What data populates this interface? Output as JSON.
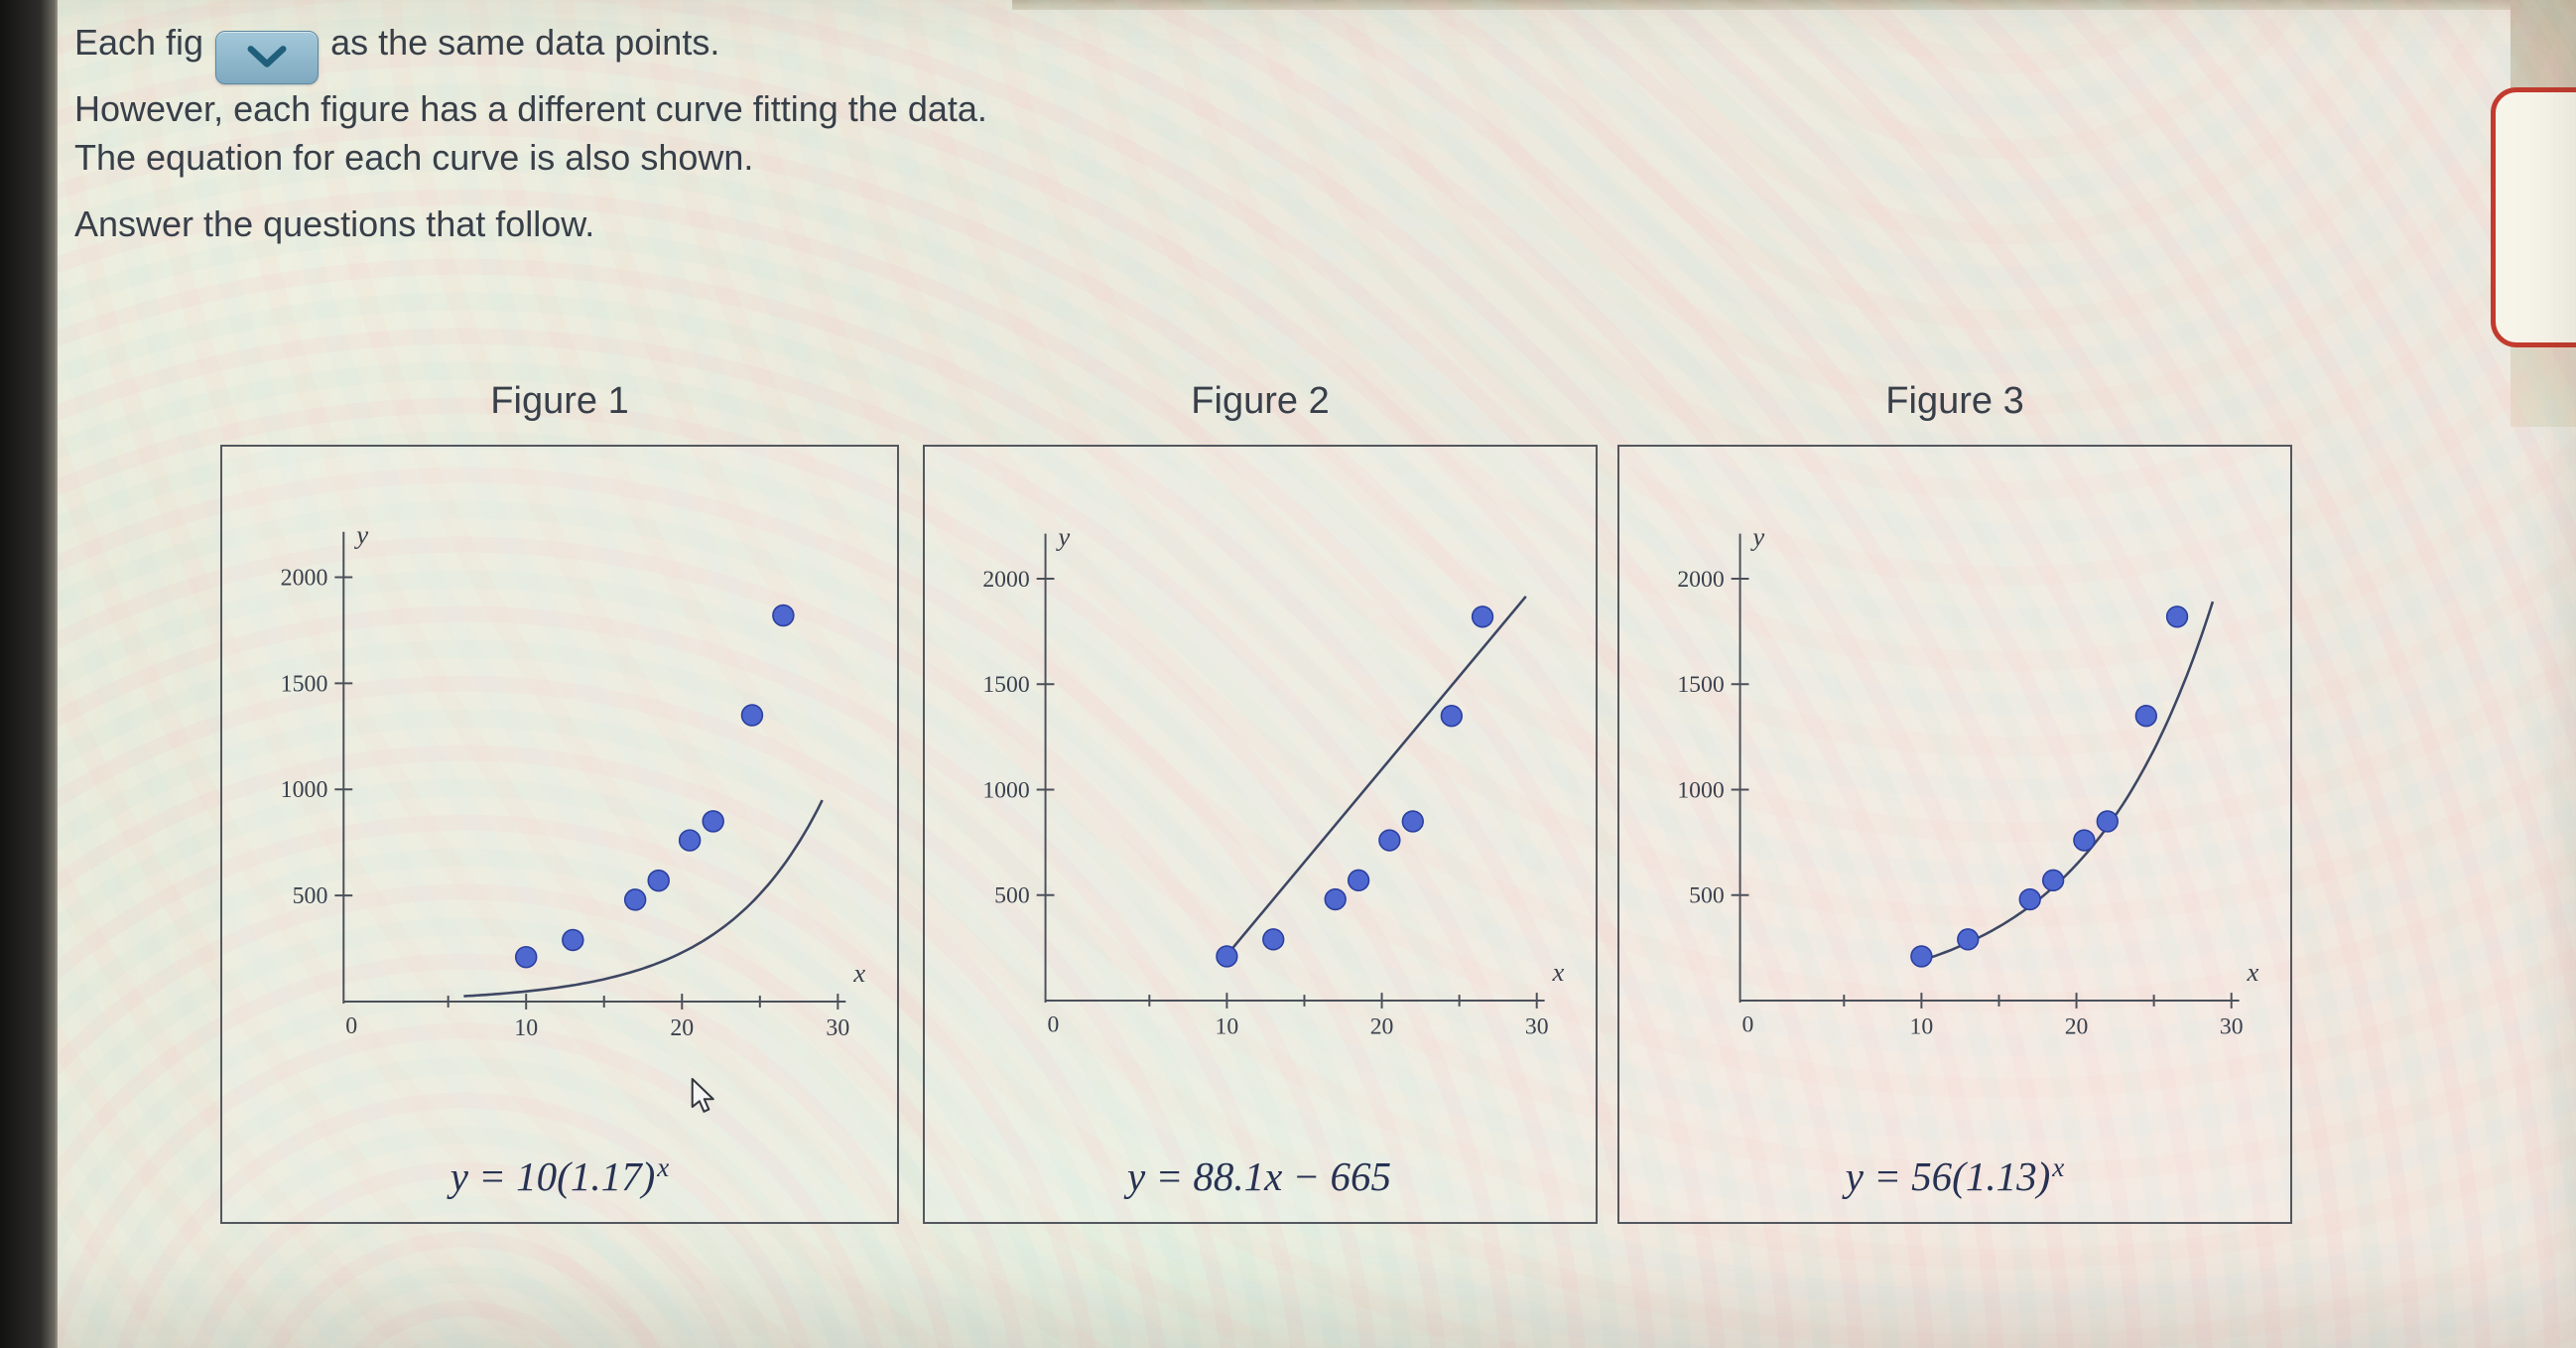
{
  "theme": {
    "point_fill": "#4e68cf",
    "point_stroke": "#2b3f9f",
    "curve_color": "#3d4763",
    "axis_color": "#4b505a",
    "text_color": "#383f49",
    "equation_color": "#273253",
    "dropdown_bg": "#7fa9c0",
    "dropdown_chevron": "#1f5f7b",
    "card_border": "#c23b2e"
  },
  "instructions": {
    "line1_prefix": "Each fig",
    "line1_suffix": "as the same data points.",
    "line2": "However, each figure has a different curve fitting the data.",
    "line3": "The equation for each curve is also shown.",
    "line4": "Answer the questions that follow."
  },
  "chart_data": [
    {
      "type": "scatter",
      "title": "Figure 1",
      "equation": {
        "base": "y = 10(1.17)",
        "sup": "x"
      },
      "curve": {
        "kind": "exponential",
        "coef": 10,
        "base": 1.17,
        "x_from": 6,
        "x_to": 29
      },
      "points": [
        [
          10,
          210
        ],
        [
          13,
          290
        ],
        [
          17,
          480
        ],
        [
          18.5,
          570
        ],
        [
          20.5,
          760
        ],
        [
          22,
          850
        ],
        [
          24.5,
          1350
        ],
        [
          26.5,
          1820
        ]
      ],
      "xlabel": "x",
      "ylabel": "y",
      "origin_label": "0",
      "xlim": [
        0,
        33
      ],
      "ylim": [
        0,
        2350
      ],
      "x_ticks_major": [
        10,
        20,
        30
      ],
      "x_ticks_minor": [
        5,
        15,
        25
      ],
      "y_ticks": [
        500,
        1000,
        1500,
        2000
      ],
      "grid": false,
      "legend": false
    },
    {
      "type": "scatter",
      "title": "Figure 2",
      "equation": {
        "base": "y = 88.1x − 665",
        "sup": ""
      },
      "curve": {
        "kind": "linear",
        "slope": 88.1,
        "intercept": -665,
        "x_from": 10,
        "x_to": 29.3
      },
      "points": [
        [
          10,
          210
        ],
        [
          13,
          290
        ],
        [
          17,
          480
        ],
        [
          18.5,
          570
        ],
        [
          20.5,
          760
        ],
        [
          22,
          850
        ],
        [
          24.5,
          1350
        ],
        [
          26.5,
          1820
        ]
      ],
      "xlabel": "x",
      "ylabel": "y",
      "origin_label": "0",
      "xlim": [
        0,
        33
      ],
      "ylim": [
        0,
        2350
      ],
      "x_ticks_major": [
        10,
        20,
        30
      ],
      "x_ticks_minor": [
        5,
        15,
        25
      ],
      "y_ticks": [
        500,
        1000,
        1500,
        2000
      ],
      "grid": false,
      "legend": false
    },
    {
      "type": "scatter",
      "title": "Figure 3",
      "equation": {
        "base": "y = 56(1.13)",
        "sup": "x"
      },
      "curve": {
        "kind": "exponential",
        "coef": 56,
        "base": 1.13,
        "x_from": 9.5,
        "x_to": 28.8
      },
      "points": [
        [
          10,
          210
        ],
        [
          13,
          290
        ],
        [
          17,
          480
        ],
        [
          18.5,
          570
        ],
        [
          20.5,
          760
        ],
        [
          22,
          850
        ],
        [
          24.5,
          1350
        ],
        [
          26.5,
          1820
        ]
      ],
      "xlabel": "x",
      "ylabel": "y",
      "origin_label": "0",
      "xlim": [
        0,
        33
      ],
      "ylim": [
        0,
        2350
      ],
      "x_ticks_major": [
        10,
        20,
        30
      ],
      "x_ticks_minor": [
        5,
        15,
        25
      ],
      "y_ticks": [
        500,
        1000,
        1500,
        2000
      ],
      "grid": false,
      "legend": false
    }
  ]
}
